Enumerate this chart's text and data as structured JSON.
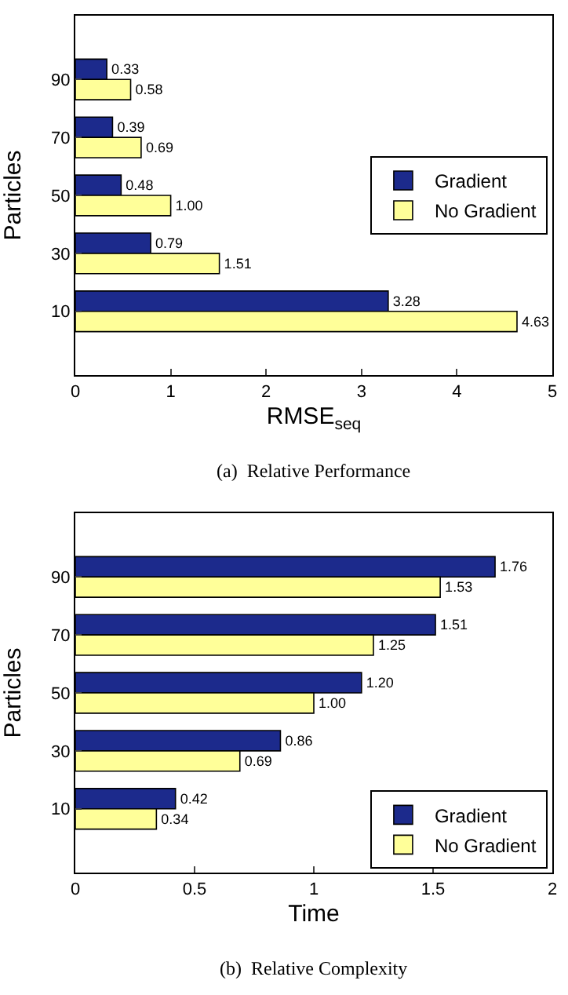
{
  "chart_data": [
    {
      "type": "bar",
      "orientation": "horizontal",
      "ylabel": "Particles",
      "xlabel": "RMSE$_{seq}$",
      "categories": [
        "90",
        "70",
        "50",
        "30",
        "10"
      ],
      "series": [
        {
          "name": "Gradient",
          "color": "#1c2a8c",
          "values": [
            0.33,
            0.39,
            0.48,
            0.79,
            3.28
          ],
          "value_labels": [
            "0.33",
            "0.39",
            "0.48",
            "0.79",
            "3.28"
          ]
        },
        {
          "name": "No Gradient",
          "color": "#ffff99",
          "values": [
            0.58,
            0.69,
            1.0,
            1.51,
            4.63
          ],
          "value_labels": [
            "0.58",
            "0.69",
            "1.00",
            "1.51",
            "4.63"
          ]
        }
      ],
      "xlim": [
        0,
        5
      ],
      "xticks": [
        0,
        1,
        2,
        3,
        4,
        5
      ],
      "legend": "right",
      "grid": false,
      "annotations": [
        "(a)  Relative Performance"
      ]
    },
    {
      "type": "bar",
      "orientation": "horizontal",
      "ylabel": "Particles",
      "xlabel": "Time",
      "categories": [
        "90",
        "70",
        "50",
        "30",
        "10"
      ],
      "series": [
        {
          "name": "Gradient",
          "color": "#1c2a8c",
          "values": [
            1.76,
            1.51,
            1.2,
            0.86,
            0.42
          ],
          "value_labels": [
            "1.76",
            "1.51",
            "1.20",
            "0.86",
            "0.42"
          ]
        },
        {
          "name": "No Gradient",
          "color": "#ffff99",
          "values": [
            1.53,
            1.25,
            1.0,
            0.69,
            0.34
          ],
          "value_labels": [
            "1.53",
            "1.25",
            "1.00",
            "0.69",
            "0.34"
          ]
        }
      ],
      "xlim": [
        0,
        2
      ],
      "xticks": [
        0,
        0.5,
        1,
        1.5,
        2
      ],
      "legend": "bottom right",
      "grid": false,
      "annotations": [
        "(b)  Relative Complexity"
      ]
    }
  ]
}
